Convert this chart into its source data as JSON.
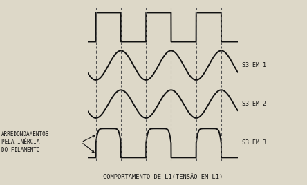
{
  "title": "COMPORTAMENTO DE L1(TENSÃO EM L1)",
  "label_s3em1": "S3 EM 1",
  "label_s3em2": "S3 EM 2",
  "label_s3em3": "S3 EM 3",
  "annotation_line1": "ARREDONDAMENTOS",
  "annotation_line2": "PELA INÉRCIA",
  "annotation_line3": "DO FILAMENTO",
  "bg_color": "#ddd8c8",
  "line_color": "#111111",
  "dashed_color": "#555555",
  "figsize": [
    4.44,
    2.68
  ],
  "dpi": 100,
  "lw": 1.4,
  "label_fontsize": 6.0,
  "annot_fontsize": 5.5,
  "title_fontsize": 6.2
}
